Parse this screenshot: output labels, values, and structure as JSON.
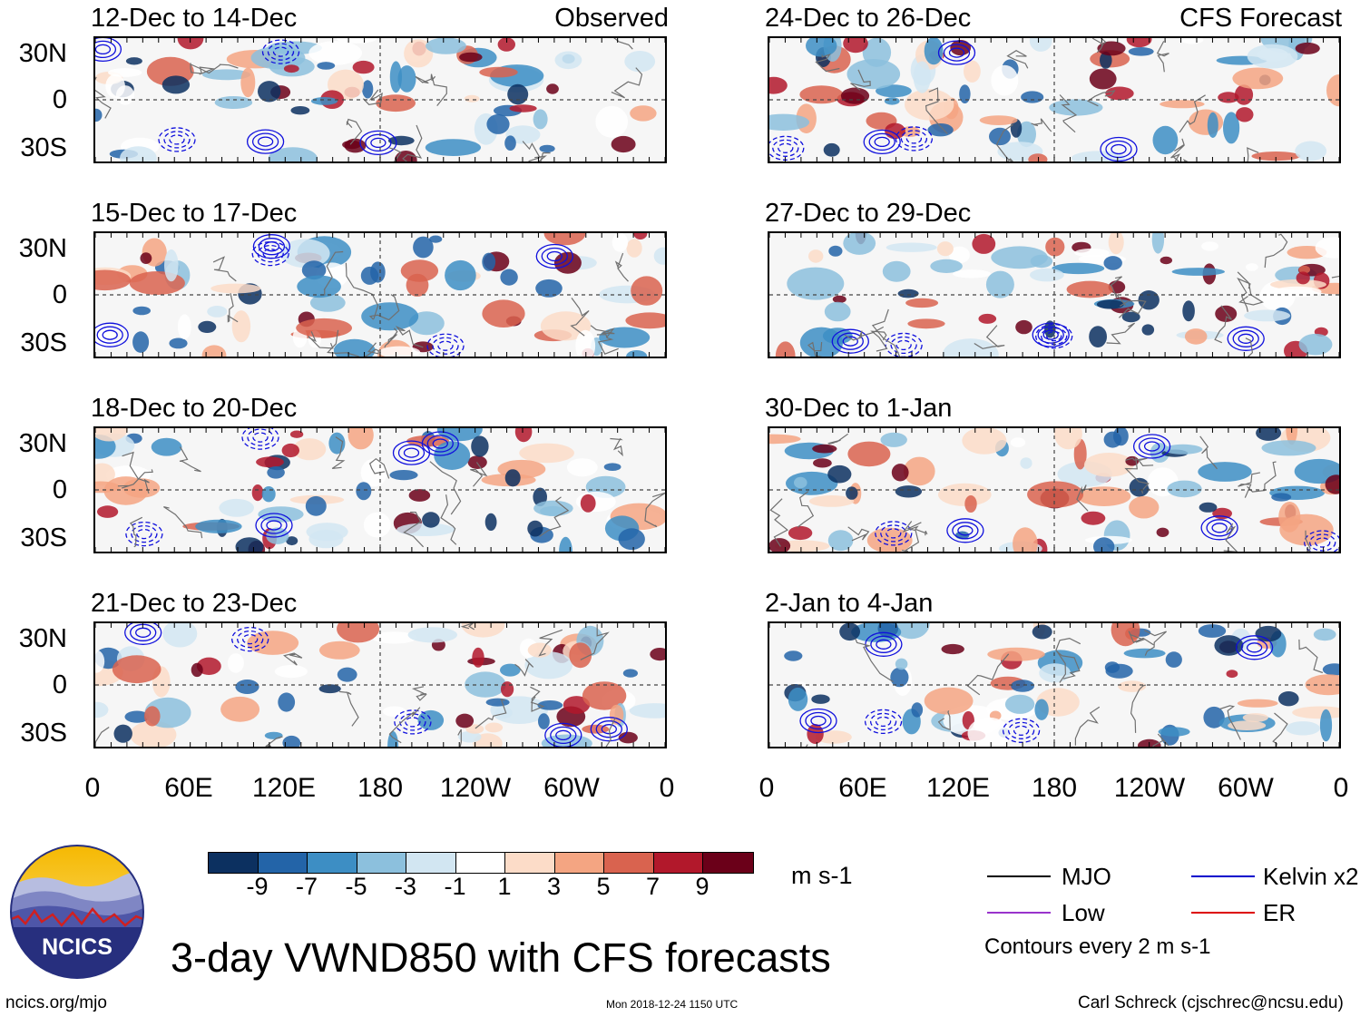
{
  "panels": [
    {
      "title": "12-Dec to 14-Dec",
      "tag": "Observed"
    },
    {
      "title": "15-Dec to 17-Dec",
      "tag": ""
    },
    {
      "title": "18-Dec to 20-Dec",
      "tag": ""
    },
    {
      "title": "21-Dec to 23-Dec",
      "tag": ""
    },
    {
      "title": "24-Dec to 26-Dec",
      "tag": "CFS Forecast"
    },
    {
      "title": "27-Dec to 29-Dec",
      "tag": ""
    },
    {
      "title": "30-Dec to 1-Jan",
      "tag": ""
    },
    {
      "title": "2-Jan to 4-Jan",
      "tag": ""
    }
  ],
  "lat_labels": [
    "30N",
    "0",
    "30S"
  ],
  "lon_labels": [
    "0",
    "60E",
    "120E",
    "180",
    "120W",
    "60W",
    "0"
  ],
  "colorbar": {
    "colors": [
      "#0c3060",
      "#2364a8",
      "#3d8ec4",
      "#8cc0dd",
      "#d2e6f2",
      "#ffffff",
      "#fcdcc8",
      "#f4a582",
      "#d9634f",
      "#b2182b",
      "#6b0019"
    ],
    "ticks": [
      "-9",
      "-7",
      "-5",
      "-3",
      "-1",
      "1",
      "3",
      "5",
      "7",
      "9"
    ],
    "units": "m s-1"
  },
  "legend": {
    "items": [
      {
        "label": "MJO",
        "color": "#000000"
      },
      {
        "label": "Kelvin x2",
        "color": "#0000cc"
      },
      {
        "label": "Low",
        "color": "#9933cc"
      },
      {
        "label": "ER",
        "color": "#dd0000"
      }
    ],
    "note": "Contours every 2 m s-1"
  },
  "main_title": "3-day VWND850 with CFS forecasts",
  "logo_text": "NCICS",
  "footer": {
    "left": "ncics.org/mjo",
    "center": "Mon 2018-12-24 1150 UTC",
    "right": "Carl Schreck (cjschrec@ncsu.edu)"
  }
}
